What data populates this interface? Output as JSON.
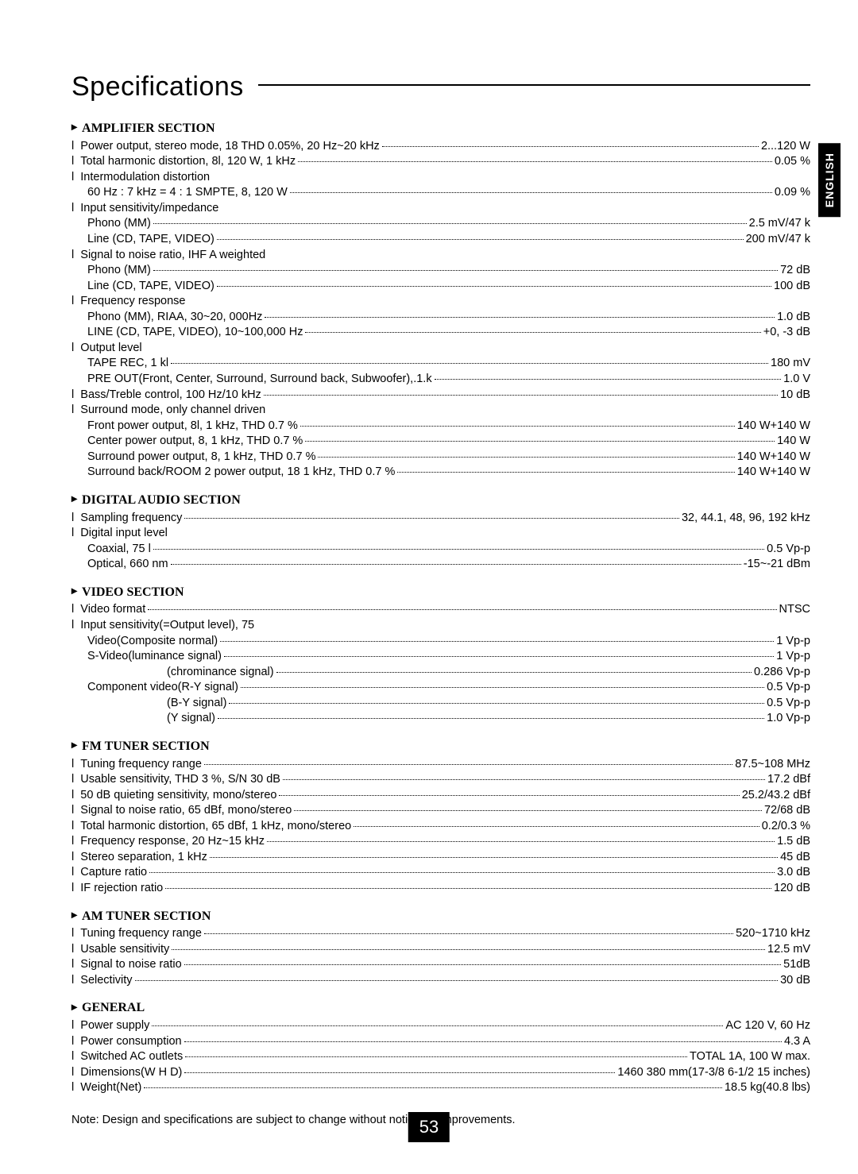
{
  "title": "Specifications",
  "language_tab": "ENGLISH",
  "page_number": "53",
  "note": "Note: Design and specifications are subject to change without notice for improvements.",
  "sections": [
    {
      "heading": "AMPLIFIER SECTION",
      "rows": [
        {
          "l": "Power output, stereo mode, 18 THD 0.05%, 20 Hz~20 kHz",
          "v": "2...120 W",
          "b": true,
          "i": 0
        },
        {
          "l": "Total harmonic distortion, 8l, 120 W, 1 kHz",
          "v": "0.05 %",
          "b": true,
          "i": 0
        },
        {
          "l": "Intermodulation distortion",
          "v": "",
          "b": true,
          "i": 0
        },
        {
          "l": "60 Hz : 7 kHz = 4 : 1 SMPTE, 8, 120 W",
          "v": "0.09 %",
          "b": false,
          "i": 1
        },
        {
          "l": "Input sensitivity/impedance",
          "v": "",
          "b": true,
          "i": 0
        },
        {
          "l": "Phono (MM)",
          "v": "2.5 mV/47 k",
          "b": false,
          "i": 1
        },
        {
          "l": "Line (CD, TAPE, VIDEO)",
          "v": "200 mV/47 k",
          "b": false,
          "i": 1
        },
        {
          "l": "Signal to noise ratio, IHF  A  weighted",
          "v": "",
          "b": true,
          "i": 0
        },
        {
          "l": "Phono (MM)",
          "v": "72 dB",
          "b": false,
          "i": 1
        },
        {
          "l": "Line (CD, TAPE, VIDEO)",
          "v": "100 dB",
          "b": false,
          "i": 1
        },
        {
          "l": "Frequency response",
          "v": "",
          "b": true,
          "i": 0
        },
        {
          "l": "Phono (MM), RIAA, 30~20, 000Hz",
          "v": "1.0 dB",
          "b": false,
          "i": 1
        },
        {
          "l": "LINE (CD, TAPE, VIDEO), 10~100,000 Hz",
          "v": "+0, -3 dB",
          "b": false,
          "i": 1
        },
        {
          "l": "Output level",
          "v": "",
          "b": true,
          "i": 0
        },
        {
          "l": "TAPE REC, 1 kl",
          "v": "180 mV",
          "b": false,
          "i": 1
        },
        {
          "l": "PRE OUT(Front, Center, Surround, Surround back, Subwoofer),.1.k",
          "v": "1.0 V",
          "b": false,
          "i": 1
        },
        {
          "l": "Bass/Treble control, 100 Hz/10 kHz",
          "v": "10 dB",
          "b": true,
          "i": 0
        },
        {
          "l": "Surround mode, only channel driven",
          "v": "",
          "b": true,
          "i": 0
        },
        {
          "l": "Front power output, 8l, 1 kHz, THD 0.7 %",
          "v": "140 W+140 W",
          "b": false,
          "i": 1
        },
        {
          "l": "Center power output, 8, 1 kHz, THD 0.7 %",
          "v": "140 W",
          "b": false,
          "i": 1
        },
        {
          "l": "Surround power output, 8, 1 kHz, THD 0.7 %",
          "v": "140 W+140 W",
          "b": false,
          "i": 1
        },
        {
          "l": "Surround back/ROOM 2 power output, 18 1 kHz, THD 0.7 %",
          "v": "140 W+140 W",
          "b": false,
          "i": 1
        }
      ]
    },
    {
      "heading": "DIGITAL AUDIO SECTION",
      "rows": [
        {
          "l": "Sampling frequency",
          "v": "32, 44.1, 48, 96, 192 kHz",
          "b": true,
          "i": 0
        },
        {
          "l": "Digital input level",
          "v": "",
          "b": true,
          "i": 0
        },
        {
          "l": "Coaxial, 75 l",
          "v": "0.5 Vp-p",
          "b": false,
          "i": 1
        },
        {
          "l": "Optical, 660 nm",
          "v": "-15~-21 dBm",
          "b": false,
          "i": 1
        }
      ]
    },
    {
      "heading": "VIDEO SECTION",
      "rows": [
        {
          "l": "Video format",
          "v": "NTSC",
          "b": true,
          "i": 0
        },
        {
          "l": "Input sensitivity(=Output level), 75",
          "v": "",
          "b": true,
          "i": 0
        },
        {
          "l": "Video(Composite normal)",
          "v": "1 Vp-p",
          "b": false,
          "i": 1
        },
        {
          "l": "S-Video(luminance signal)",
          "v": "1 Vp-p",
          "b": false,
          "i": 1
        },
        {
          "l": "(chrominance signal)",
          "v": "0.286 Vp-p",
          "b": false,
          "i": 2
        },
        {
          "l": "Component video(R-Y signal)",
          "v": "0.5 Vp-p",
          "b": false,
          "i": 1
        },
        {
          "l": "(B-Y signal)",
          "v": "0.5 Vp-p",
          "b": false,
          "i": 2
        },
        {
          "l": "(Y signal)",
          "v": "1.0 Vp-p",
          "b": false,
          "i": 2
        }
      ]
    },
    {
      "heading": "FM TUNER SECTION",
      "rows": [
        {
          "l": "Tuning frequency range",
          "v": "87.5~108 MHz",
          "b": true,
          "i": 0
        },
        {
          "l": "Usable sensitivity, THD 3 %, S/N 30 dB",
          "v": "17.2 dBf",
          "b": true,
          "i": 0
        },
        {
          "l": "50 dB quieting sensitivity, mono/stereo",
          "v": "25.2/43.2 dBf",
          "b": true,
          "i": 0
        },
        {
          "l": "Signal to noise ratio, 65 dBf, mono/stereo",
          "v": "72/68 dB",
          "b": true,
          "i": 0
        },
        {
          "l": "Total harmonic distortion, 65 dBf, 1 kHz, mono/stereo",
          "v": "0.2/0.3 %",
          "b": true,
          "i": 0
        },
        {
          "l": "Frequency response, 20 Hz~15 kHz",
          "v": "1.5 dB",
          "b": true,
          "i": 0
        },
        {
          "l": "Stereo separation, 1 kHz",
          "v": "45 dB",
          "b": true,
          "i": 0
        },
        {
          "l": "Capture ratio",
          "v": "3.0 dB",
          "b": true,
          "i": 0
        },
        {
          "l": "IF rejection ratio",
          "v": "120 dB",
          "b": true,
          "i": 0
        }
      ]
    },
    {
      "heading": "AM TUNER SECTION",
      "rows": [
        {
          "l": "Tuning frequency range",
          "v": "520~1710 kHz",
          "b": true,
          "i": 0
        },
        {
          "l": "Usable sensitivity",
          "v": "12.5 mV",
          "b": true,
          "i": 0
        },
        {
          "l": "Signal to noise ratio",
          "v": "51dB",
          "b": true,
          "i": 0
        },
        {
          "l": "Selectivity",
          "v": "30 dB",
          "b": true,
          "i": 0
        }
      ]
    },
    {
      "heading": "GENERAL",
      "rows": [
        {
          "l": "Power supply",
          "v": "AC 120 V, 60 Hz",
          "b": true,
          "i": 0
        },
        {
          "l": "Power consumption",
          "v": "4.3 A",
          "b": true,
          "i": 0
        },
        {
          "l": "Switched AC outlets",
          "v": "TOTAL 1A, 100 W max.",
          "b": true,
          "i": 0
        },
        {
          "l": "Dimensions(W  H   D)",
          "v": "1460  380 mm(17-3/8  6-1/2   15 inches)",
          "b": true,
          "i": 0
        },
        {
          "l": "Weight(Net)",
          "v": "18.5 kg(40.8 lbs)",
          "b": true,
          "i": 0
        }
      ]
    }
  ]
}
